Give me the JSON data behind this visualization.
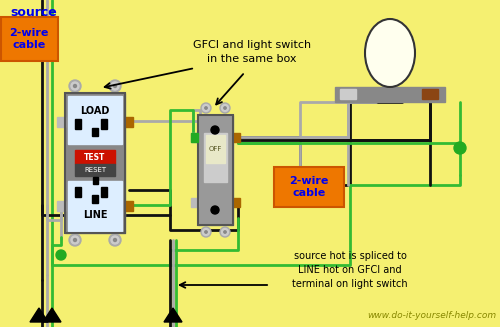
{
  "bg_color": "#f5f071",
  "title_text": "www.do-it-yourself-help.com",
  "source_label": "source",
  "cable_label_1": "2-wire\ncable",
  "cable_label_2": "2-wire\ncable",
  "annotation_top": "GFCI and light switch\nin the same box",
  "annotation_bottom": "source hot is spliced to\nLINE hot on GFCI and\nterminal on light switch",
  "wire_black": "#111111",
  "wire_gray": "#aaaaaa",
  "wire_green": "#228B22",
  "wire_bright_green": "#33bb33",
  "orange_bg": "#ee7700",
  "blue_text": "#0000ee",
  "gfci_body": "#888888",
  "switch_body": "#999999",
  "screw_gray": "#bbbbbb",
  "screw_bronze": "#aa6600",
  "white_band": "#ddeeff",
  "test_red": "#cc1100",
  "reset_dark": "#444444",
  "fixture_gray": "#888888",
  "bulb_fill": "#ffffee",
  "green_dot": "#22aa22",
  "website_color": "#888800"
}
